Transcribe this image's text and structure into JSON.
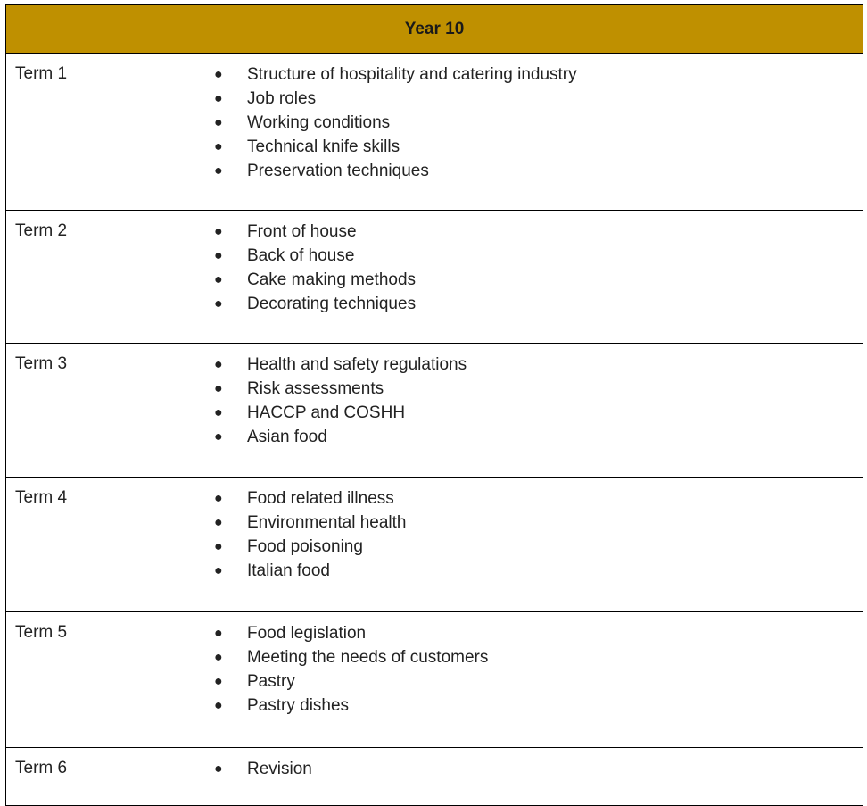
{
  "table": {
    "title": "Year 10",
    "rows": [
      {
        "term": "Term 1",
        "topics": [
          "Structure of hospitality and catering industry",
          "Job roles",
          "Working conditions",
          "Technical knife skills",
          "Preservation techniques"
        ]
      },
      {
        "term": "Term 2",
        "topics": [
          "Front of house",
          "Back of house",
          "Cake making methods",
          "Decorating techniques"
        ]
      },
      {
        "term": "Term 3",
        "topics": [
          "Health and safety regulations",
          "Risk assessments",
          "HACCP and COSHH",
          "Asian food"
        ]
      },
      {
        "term": "Term 4",
        "topics": [
          "Food related illness",
          "Environmental health",
          "Food poisoning",
          "Italian food"
        ]
      },
      {
        "term": "Term 5",
        "topics": [
          "Food legislation",
          "Meeting the needs of customers",
          "Pastry",
          "Pastry dishes"
        ]
      },
      {
        "term": "Term 6",
        "topics": [
          "Revision"
        ]
      }
    ]
  },
  "colors": {
    "header_background": "#bf9000",
    "border": "#000000"
  }
}
